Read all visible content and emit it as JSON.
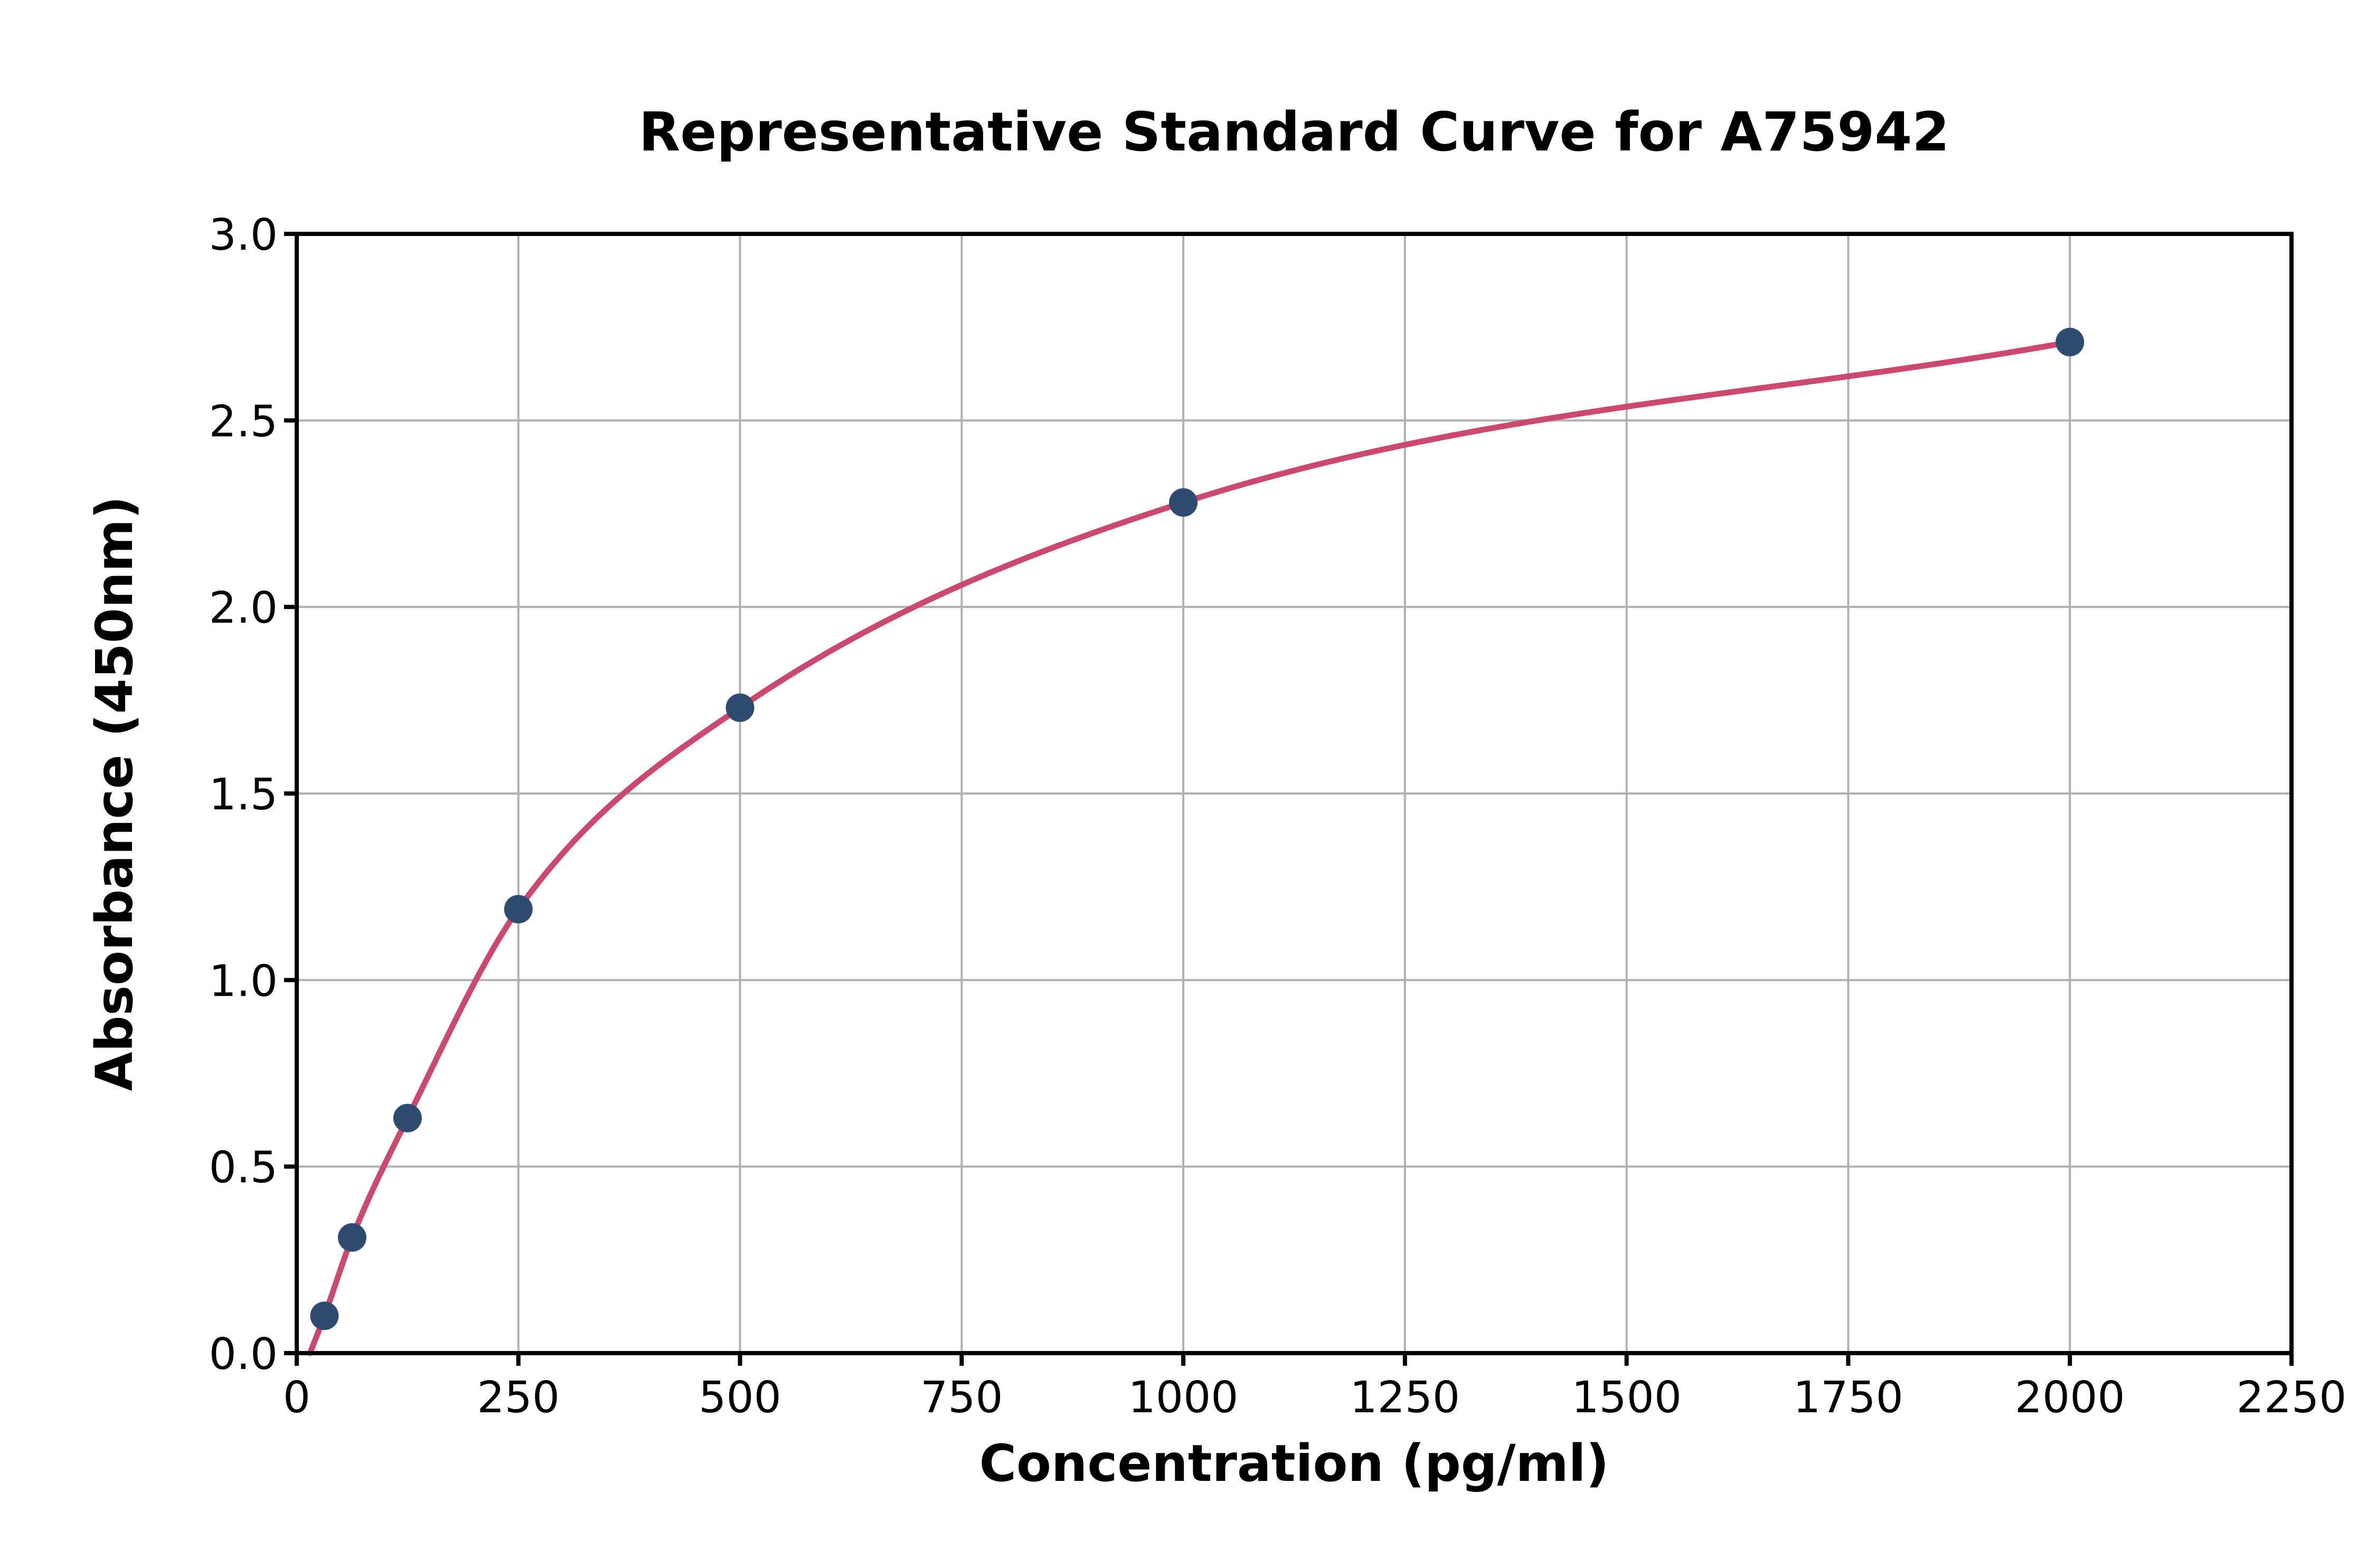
{
  "figure": {
    "background": "#ffffff"
  },
  "chart_data": {
    "type": "scatter",
    "title": "Representative Standard Curve for A75942",
    "xlabel": "Concentration (pg/ml)",
    "ylabel": "Absorbance (450nm)",
    "xlim": [
      0,
      2250
    ],
    "ylim": [
      0,
      3.0
    ],
    "x_ticks": [
      0,
      250,
      500,
      750,
      1000,
      1250,
      1500,
      1750,
      2000,
      2250
    ],
    "x_tick_labels": [
      "0",
      "250",
      "500",
      "750",
      "1000",
      "1250",
      "1500",
      "1750",
      "2000",
      "2250"
    ],
    "y_ticks": [
      0,
      0.5,
      1.0,
      1.5,
      2.0,
      2.5,
      3.0
    ],
    "y_tick_labels": [
      "0.0",
      "0.5",
      "1.0",
      "1.5",
      "2.0",
      "2.5",
      "3.0"
    ],
    "grid": true,
    "legend": "none",
    "series": [
      {
        "name": "standards",
        "type": "scatter",
        "x": [
          31.25,
          62.5,
          125,
          250,
          500,
          1000,
          2000
        ],
        "y": [
          0.1,
          0.31,
          0.63,
          1.19,
          1.73,
          2.28,
          2.71
        ]
      },
      {
        "name": "fitted-curve",
        "type": "line",
        "x": [
          15,
          31.25,
          62.5,
          125,
          250,
          500,
          1000,
          2000
        ],
        "y": [
          0.0,
          0.1,
          0.31,
          0.63,
          1.19,
          1.73,
          2.28,
          2.71
        ]
      }
    ],
    "colors": {
      "point": "#2f4b70",
      "curve": "#c9496f",
      "grid": "#b0b0b0",
      "axis": "#000000",
      "text": "#000000"
    }
  }
}
